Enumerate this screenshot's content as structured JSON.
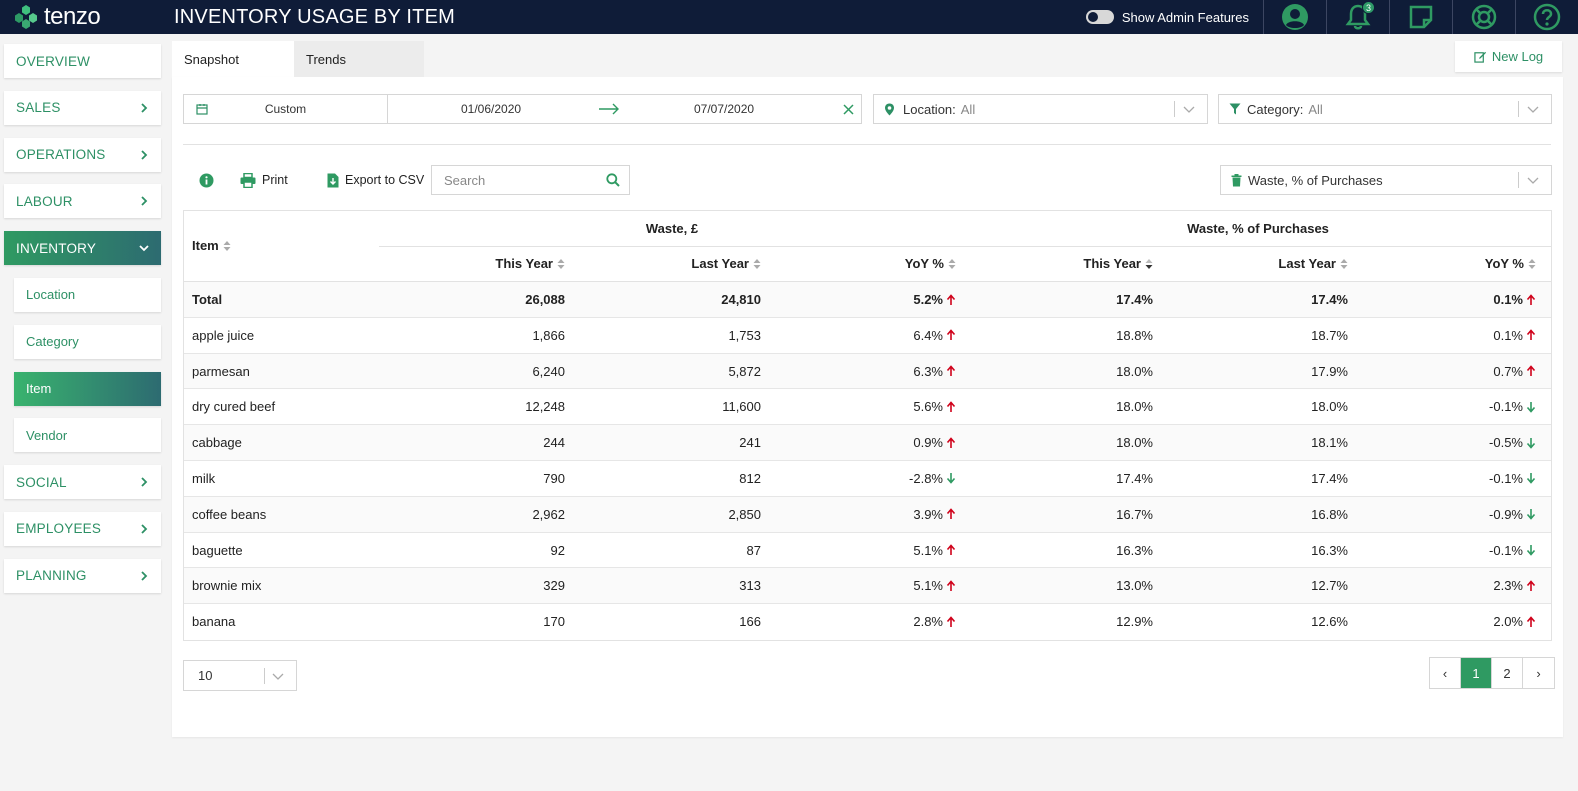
{
  "app": {
    "brand": "tenzo",
    "page_title": "INVENTORY USAGE BY ITEM",
    "admin_toggle_label": "Show Admin Features",
    "notification_count": "3"
  },
  "sidebar": {
    "items": [
      {
        "label": "OVERVIEW"
      },
      {
        "label": "SALES"
      },
      {
        "label": "OPERATIONS"
      },
      {
        "label": "LABOUR"
      },
      {
        "label": "INVENTORY"
      },
      {
        "label": "SOCIAL"
      },
      {
        "label": "EMPLOYEES"
      },
      {
        "label": "PLANNING"
      }
    ],
    "inventory_sub": [
      {
        "label": "Location"
      },
      {
        "label": "Category"
      },
      {
        "label": "Item"
      },
      {
        "label": "Vendor"
      }
    ]
  },
  "tabs": [
    {
      "label": "Snapshot"
    },
    {
      "label": "Trends"
    }
  ],
  "new_log_label": "New Log",
  "filters": {
    "range_mode": "Custom",
    "start_date": "01/06/2020",
    "end_date": "07/07/2020",
    "location_label": "Location:",
    "location_value": "All",
    "category_label": "Category:",
    "category_value": "All"
  },
  "toolbar": {
    "print_label": "Print",
    "export_label": "Export to CSV",
    "search_placeholder": "Search",
    "metric_select": "Waste, % of Purchases"
  },
  "table": {
    "item_header": "Item",
    "group1": "Waste, £",
    "group2": "Waste, % of Purchases",
    "columns": [
      "This Year",
      "Last Year",
      "YoY %",
      "This Year",
      "Last Year",
      "YoY %"
    ],
    "total": {
      "name": "Total",
      "v": [
        "26,088",
        "24,810",
        "5.2%",
        "17.4%",
        "17.4%",
        "0.1%"
      ],
      "d1": "up",
      "d2": "up"
    },
    "rows": [
      {
        "name": "apple juice",
        "v": [
          "1,866",
          "1,753",
          "6.4%",
          "18.8%",
          "18.7%",
          "0.1%"
        ],
        "d1": "up",
        "d2": "up"
      },
      {
        "name": "parmesan",
        "v": [
          "6,240",
          "5,872",
          "6.3%",
          "18.0%",
          "17.9%",
          "0.7%"
        ],
        "d1": "up",
        "d2": "up"
      },
      {
        "name": "dry cured beef",
        "v": [
          "12,248",
          "11,600",
          "5.6%",
          "18.0%",
          "18.0%",
          "-0.1%"
        ],
        "d1": "up",
        "d2": "down"
      },
      {
        "name": "cabbage",
        "v": [
          "244",
          "241",
          "0.9%",
          "18.0%",
          "18.1%",
          "-0.5%"
        ],
        "d1": "up",
        "d2": "down"
      },
      {
        "name": "milk",
        "v": [
          "790",
          "812",
          "-2.8%",
          "17.4%",
          "17.4%",
          "-0.1%"
        ],
        "d1": "down",
        "d2": "down"
      },
      {
        "name": "coffee beans",
        "v": [
          "2,962",
          "2,850",
          "3.9%",
          "16.7%",
          "16.8%",
          "-0.9%"
        ],
        "d1": "up",
        "d2": "down"
      },
      {
        "name": "baguette",
        "v": [
          "92",
          "87",
          "5.1%",
          "16.3%",
          "16.3%",
          "-0.1%"
        ],
        "d1": "up",
        "d2": "down"
      },
      {
        "name": "brownie mix",
        "v": [
          "329",
          "313",
          "5.1%",
          "13.0%",
          "12.7%",
          "2.3%"
        ],
        "d1": "up",
        "d2": "up"
      },
      {
        "name": "banana",
        "v": [
          "170",
          "166",
          "2.8%",
          "12.9%",
          "12.6%",
          "2.0%"
        ],
        "d1": "up",
        "d2": "up"
      }
    ]
  },
  "pagination": {
    "page_size": "10",
    "prev": "‹",
    "next": "›",
    "pages": [
      "1",
      "2"
    ]
  },
  "colors": {
    "accent": "#2f9a62",
    "topbar": "#0f1c38",
    "up": "#d0021b",
    "down": "#2f9a62"
  }
}
